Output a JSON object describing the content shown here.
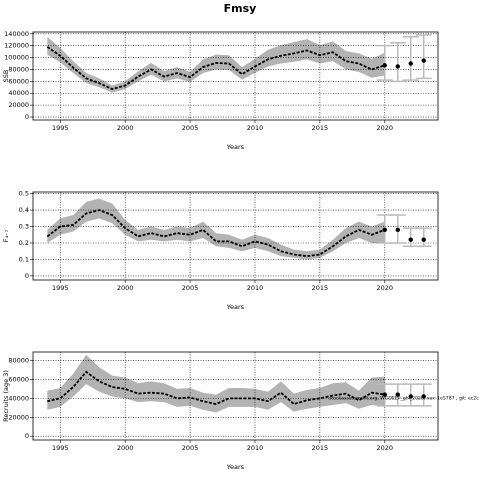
{
  "chart_data": [
    {
      "type": "band-line",
      "title": "Fmsy",
      "ylabel": "SSB",
      "xlabel": "Years",
      "x": [
        1994,
        1995,
        1996,
        1997,
        1998,
        1999,
        2000,
        2001,
        2002,
        2003,
        2004,
        2005,
        2006,
        2007,
        2008,
        2009,
        2010,
        2011,
        2012,
        2013,
        2014,
        2015,
        2016,
        2017,
        2018,
        2019,
        2020
      ],
      "values": [
        118000,
        103000,
        83000,
        65000,
        57000,
        47000,
        53000,
        68000,
        80000,
        68000,
        74000,
        67000,
        84000,
        91000,
        90000,
        72000,
        85000,
        97000,
        103000,
        107000,
        112000,
        104000,
        109000,
        94000,
        90000,
        80000,
        87000
      ],
      "lower": [
        105000,
        92000,
        74000,
        57000,
        50000,
        41000,
        47000,
        60000,
        71000,
        60000,
        65000,
        59000,
        74000,
        80000,
        79000,
        63000,
        74000,
        85000,
        90000,
        93000,
        97000,
        90000,
        94000,
        80000,
        76000,
        66000,
        70000
      ],
      "upper": [
        135000,
        116000,
        94000,
        74000,
        65000,
        53000,
        60000,
        77000,
        91000,
        77000,
        84000,
        76000,
        97000,
        105000,
        104000,
        84000,
        98000,
        113000,
        121000,
        126000,
        131000,
        121000,
        127000,
        111000,
        107000,
        98000,
        108000
      ],
      "forecast_x": [
        2020,
        2021,
        2022,
        2023
      ],
      "forecast_values": [
        87000,
        85000,
        90000,
        95000
      ],
      "forecast_lower": [
        62000,
        60000,
        62000,
        65000
      ],
      "forecast_upper": [
        120000,
        125000,
        135000,
        138000
      ],
      "xlim": [
        1992.9,
        2024.1
      ],
      "xticks": [
        1995,
        2000,
        2005,
        2010,
        2015,
        2020
      ],
      "ylim": [
        -5000,
        143000
      ],
      "yticks": [
        0,
        20000,
        40000,
        60000,
        80000,
        100000,
        120000,
        140000
      ],
      "grid": true,
      "band_color": "#b3b3b3",
      "line_color": "#000000",
      "bar_color": "#bbbbbb"
    },
    {
      "type": "band-line",
      "ylabel": "F₄₋₇",
      "xlabel": "Years",
      "x": [
        1994,
        1995,
        1996,
        1997,
        1998,
        1999,
        2000,
        2001,
        2002,
        2003,
        2004,
        2005,
        2006,
        2007,
        2008,
        2009,
        2010,
        2011,
        2012,
        2013,
        2014,
        2015,
        2016,
        2017,
        2018,
        2019,
        2020
      ],
      "values": [
        0.24,
        0.3,
        0.31,
        0.38,
        0.4,
        0.37,
        0.29,
        0.24,
        0.26,
        0.24,
        0.26,
        0.25,
        0.28,
        0.21,
        0.21,
        0.18,
        0.21,
        0.19,
        0.15,
        0.13,
        0.12,
        0.13,
        0.18,
        0.24,
        0.28,
        0.25,
        0.28
      ],
      "lower": [
        0.2,
        0.25,
        0.27,
        0.33,
        0.35,
        0.32,
        0.25,
        0.21,
        0.22,
        0.21,
        0.22,
        0.21,
        0.23,
        0.18,
        0.17,
        0.15,
        0.17,
        0.15,
        0.12,
        0.11,
        0.1,
        0.11,
        0.15,
        0.2,
        0.23,
        0.2,
        0.2
      ],
      "upper": [
        0.28,
        0.35,
        0.37,
        0.45,
        0.47,
        0.44,
        0.34,
        0.28,
        0.3,
        0.28,
        0.3,
        0.29,
        0.33,
        0.26,
        0.25,
        0.22,
        0.25,
        0.23,
        0.19,
        0.16,
        0.15,
        0.16,
        0.22,
        0.29,
        0.33,
        0.3,
        0.33
      ],
      "forecast_x": [
        2020,
        2021,
        2022,
        2023
      ],
      "forecast_values": [
        0.28,
        0.28,
        0.22,
        0.22
      ],
      "forecast_lower": [
        0.2,
        0.2,
        0.18,
        0.18
      ],
      "forecast_upper": [
        0.37,
        0.37,
        0.29,
        0.29
      ],
      "xlim": [
        1992.9,
        2024.1
      ],
      "xticks": [
        1995,
        2000,
        2005,
        2010,
        2015,
        2020
      ],
      "ylim": [
        -0.025,
        0.51
      ],
      "yticks": [
        0,
        0.1,
        0.2,
        0.3,
        0.4,
        0.5
      ],
      "grid": true,
      "band_color": "#b3b3b3",
      "line_color": "#000000",
      "bar_color": "#bbbbbb"
    },
    {
      "type": "band-line",
      "ylabel": "Recruits (age 3)",
      "xlabel": "Years",
      "annotation": "stockassessment.org, WGDEEP_ghl_2020, ver: 1e5787 , git: ec2c",
      "x": [
        1994,
        1995,
        1996,
        1997,
        1998,
        1999,
        2000,
        2001,
        2002,
        2003,
        2004,
        2005,
        2006,
        2007,
        2008,
        2009,
        2010,
        2011,
        2012,
        2013,
        2014,
        2015,
        2016,
        2017,
        2018,
        2019,
        2020
      ],
      "values": [
        37000,
        40000,
        52000,
        68000,
        58000,
        52000,
        50000,
        45000,
        46000,
        45000,
        40000,
        41000,
        37000,
        34000,
        40000,
        40000,
        40000,
        37000,
        46000,
        34000,
        38000,
        40000,
        43000,
        45000,
        38000,
        46000,
        44000
      ],
      "lower": [
        28000,
        31000,
        42000,
        55000,
        47000,
        42000,
        40000,
        36000,
        37000,
        36000,
        31000,
        32000,
        28000,
        25000,
        31000,
        31000,
        31000,
        28000,
        36000,
        26000,
        29000,
        31000,
        33000,
        35000,
        29000,
        33000,
        31000
      ],
      "upper": [
        48000,
        51000,
        66000,
        86000,
        73000,
        64000,
        62000,
        56000,
        58000,
        56000,
        50000,
        51000,
        46000,
        44000,
        51000,
        51000,
        50000,
        47000,
        58000,
        45000,
        49000,
        51000,
        56000,
        57000,
        48000,
        62000,
        63000
      ],
      "forecast_x": [
        2020,
        2021,
        2022,
        2023
      ],
      "forecast_values": [
        44000,
        44000,
        42000,
        42000
      ],
      "forecast_lower": [
        32000,
        32000,
        32000,
        32000
      ],
      "forecast_upper": [
        55000,
        55000,
        55000,
        55000
      ],
      "xlim": [
        1992.9,
        2024.1
      ],
      "xticks": [
        1995,
        2000,
        2005,
        2010,
        2015,
        2020
      ],
      "ylim": [
        -4000,
        89000
      ],
      "yticks": [
        0,
        20000,
        40000,
        60000,
        80000
      ],
      "grid": true,
      "band_color": "#b3b3b3",
      "line_color": "#000000",
      "bar_color": "#bbbbbb"
    }
  ]
}
